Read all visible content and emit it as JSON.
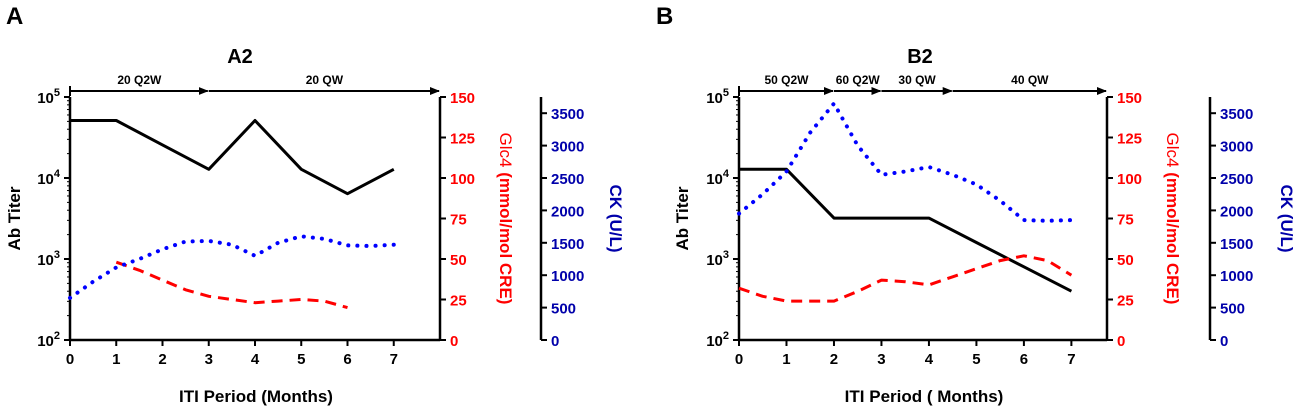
{
  "chart_data": [
    {
      "panel": "A",
      "title": "A2",
      "type": "line",
      "xlabel": "ITI Period (Months)",
      "xticks": [
        0,
        1,
        2,
        3,
        4,
        5,
        6,
        7
      ],
      "xlim": [
        0,
        8
      ],
      "axes": {
        "ab": {
          "label": "Ab Titer",
          "scale": "log",
          "ticks": [
            {
              "v": 100,
              "base": "10",
              "exp": "2"
            },
            {
              "v": 1000,
              "base": "10",
              "exp": "3"
            },
            {
              "v": 10000,
              "base": "10",
              "exp": "4"
            },
            {
              "v": 100000,
              "base": "10",
              "exp": "5"
            }
          ],
          "ylim": [
            100,
            100000
          ],
          "color": "#000000"
        },
        "glc4": {
          "label_prefix": "Glc4",
          "label_suffix": " (mmol/mol CRE)",
          "ticks": [
            0,
            25,
            50,
            75,
            100,
            125,
            150
          ],
          "ylim": [
            0,
            150
          ],
          "color": "#ff0000"
        },
        "ck": {
          "label": "CK (U/L)",
          "ticks": [
            0,
            500,
            1000,
            1500,
            2000,
            2500,
            3000,
            3500
          ],
          "ylim": [
            0,
            3750
          ],
          "color": "#0000aa"
        }
      },
      "regimens": [
        {
          "label": "20 Q2W",
          "from": 0,
          "to": 3
        },
        {
          "label": "20 QW",
          "from": 3,
          "to": 8
        }
      ],
      "series": [
        {
          "name": "Ab Titer",
          "axis": "ab",
          "style": "solid",
          "color": "#000000",
          "x": [
            0,
            1,
            2,
            3,
            4,
            5,
            6,
            7
          ],
          "y": [
            51200,
            51200,
            25600,
            12800,
            51200,
            12800,
            6400,
            12800
          ]
        },
        {
          "name": "Glc4",
          "axis": "glc4",
          "style": "dashed",
          "color": "#ff0000",
          "x": [
            1,
            1.5,
            2,
            2.5,
            3,
            3.5,
            4,
            4.5,
            5,
            5.5,
            6
          ],
          "y": [
            48,
            43,
            37,
            31,
            27,
            25,
            23,
            24,
            25,
            24,
            20
          ]
        },
        {
          "name": "CK",
          "axis": "ck",
          "style": "dotted",
          "color": "#0000ff",
          "x": [
            0,
            0.5,
            1,
            1.5,
            2,
            2.5,
            3,
            3.5,
            4,
            4.5,
            5,
            5.5,
            6,
            6.5,
            7
          ],
          "y": [
            650,
            900,
            1120,
            1250,
            1400,
            1520,
            1530,
            1470,
            1300,
            1500,
            1600,
            1560,
            1460,
            1450,
            1470
          ]
        }
      ]
    },
    {
      "panel": "B",
      "title": "B2",
      "type": "line",
      "xlabel": "ITI  Period ( Months)",
      "xticks": [
        0,
        1,
        2,
        3,
        4,
        5,
        6,
        7
      ],
      "xlim": [
        0,
        7.75
      ],
      "axes": {
        "ab": {
          "label": "Ab Titer",
          "scale": "log",
          "ticks": [
            {
              "v": 100,
              "base": "10",
              "exp": "2"
            },
            {
              "v": 1000,
              "base": "10",
              "exp": "3"
            },
            {
              "v": 10000,
              "base": "10",
              "exp": "4"
            },
            {
              "v": 100000,
              "base": "10",
              "exp": "5"
            }
          ],
          "ylim": [
            100,
            100000
          ],
          "color": "#000000"
        },
        "glc4": {
          "label_prefix": "Glc4",
          "label_suffix": " (mmol/mol CRE)",
          "ticks": [
            0,
            25,
            50,
            75,
            100,
            125,
            150
          ],
          "ylim": [
            0,
            150
          ],
          "color": "#ff0000"
        },
        "ck": {
          "label": "CK (U/L)",
          "ticks": [
            0,
            500,
            1000,
            1500,
            2000,
            2500,
            3000,
            3500
          ],
          "ylim": [
            0,
            3750
          ],
          "color": "#0000aa"
        }
      },
      "regimens": [
        {
          "label": "50 Q2W",
          "from": 0,
          "to": 2
        },
        {
          "label": "60 Q2W",
          "from": 2,
          "to": 3
        },
        {
          "label": "30 QW",
          "from": 3,
          "to": 4.5
        },
        {
          "label": "40 QW",
          "from": 4.5,
          "to": 7.75
        }
      ],
      "series": [
        {
          "name": "Ab Titer",
          "axis": "ab",
          "style": "solid",
          "color": "#000000",
          "x": [
            0,
            1,
            2,
            3,
            4,
            5,
            6,
            7
          ],
          "y": [
            12800,
            12800,
            3200,
            3200,
            3200,
            1600,
            800,
            400
          ]
        },
        {
          "name": "Glc4",
          "axis": "glc4",
          "style": "dashed",
          "color": "#ff0000",
          "x": [
            0,
            0.5,
            1,
            1.5,
            2,
            2.5,
            3,
            3.5,
            4,
            4.5,
            5,
            5.5,
            6,
            6.5,
            7
          ],
          "y": [
            32,
            27,
            24,
            24,
            24,
            30,
            37,
            36,
            34,
            39,
            44,
            49,
            52,
            49,
            40
          ]
        },
        {
          "name": "CK",
          "axis": "ck",
          "style": "dotted",
          "color": "#0000ff",
          "x": [
            0,
            0.5,
            1,
            1.5,
            2,
            2.5,
            3,
            3.5,
            4,
            4.5,
            5,
            5.5,
            6,
            6.5,
            7
          ],
          "y": [
            1950,
            2250,
            2600,
            3200,
            3650,
            3000,
            2550,
            2600,
            2670,
            2550,
            2400,
            2150,
            1850,
            1840,
            1850
          ]
        }
      ]
    }
  ]
}
